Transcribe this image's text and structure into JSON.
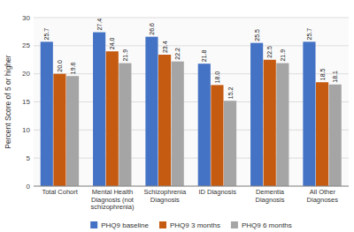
{
  "chart_data": {
    "type": "bar",
    "categories": [
      "Total Cohort",
      "Mental Health\nDiagnosis (not\nschizophrenia)",
      "Schizophrenia\nDiagnosis",
      "ID Diagnosis",
      "Dementia\nDiagnosis",
      "All Other\nDiagnoses"
    ],
    "series": [
      {
        "name": "PHQ9 baseline",
        "color": "#4472C4",
        "values": [
          25.7,
          27.4,
          26.6,
          21.8,
          25.5,
          25.7
        ],
        "value_labels": [
          "25.7",
          "27.4",
          "26.6",
          "21.8",
          "25.5",
          "25.7"
        ]
      },
      {
        "name": "PHQ9 3 months",
        "color": "#C55A11",
        "values": [
          20.0,
          24.0,
          23.4,
          18.0,
          22.5,
          18.5
        ],
        "value_labels": [
          "20.0",
          "24.0",
          "23.4",
          "18.0",
          "22.5",
          "18.5"
        ]
      },
      {
        "name": "PHQ9 6 months",
        "color": "#A5A5A5",
        "values": [
          19.6,
          21.9,
          22.2,
          15.2,
          21.9,
          18.1
        ],
        "value_labels": [
          "19.6",
          "21.9",
          "22.2",
          "15.2",
          "21.9",
          "18.1"
        ]
      }
    ],
    "y_label": "Percent Score of 5 or higher",
    "ylim": [
      0,
      30
    ],
    "yticks": [
      0,
      5,
      10,
      15,
      20,
      25,
      30
    ],
    "grid": true,
    "legend": "bottom",
    "data_labels": true
  }
}
